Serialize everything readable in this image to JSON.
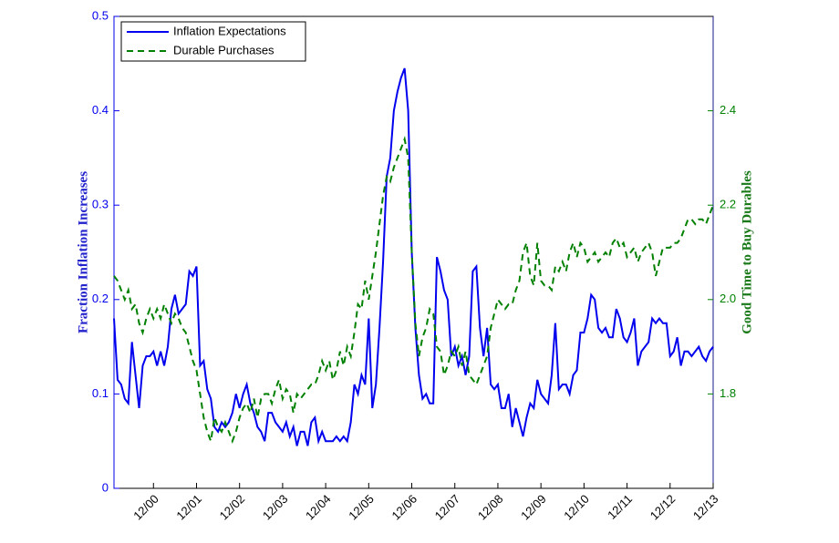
{
  "chart_data": {
    "type": "line",
    "y_label": "Fraction Inflation Increases",
    "y2_label": "Good Time to Buy Durables",
    "xlim": [
      0,
      167
    ],
    "xticks": [
      {
        "value": 11,
        "label": "12/00"
      },
      {
        "value": 23,
        "label": "12/01"
      },
      {
        "value": 35,
        "label": "12/02"
      },
      {
        "value": 47,
        "label": "12/03"
      },
      {
        "value": 59,
        "label": "12/04"
      },
      {
        "value": 71,
        "label": "12/05"
      },
      {
        "value": 83,
        "label": "12/06"
      },
      {
        "value": 95,
        "label": "12/07"
      },
      {
        "value": 107,
        "label": "12/08"
      },
      {
        "value": 119,
        "label": "12/09"
      },
      {
        "value": 131,
        "label": "12/10"
      },
      {
        "value": 143,
        "label": "12/11"
      },
      {
        "value": 155,
        "label": "12/12"
      },
      {
        "value": 167,
        "label": "12/13"
      }
    ],
    "ylim": [
      0,
      0.5
    ],
    "yticks": [
      0,
      0.1,
      0.2,
      0.3,
      0.4,
      0.5
    ],
    "y2lim": [
      1.6,
      2.6
    ],
    "y2ticks": [
      1.8,
      {
        "value": 2,
        "label": "2.0"
      },
      2.2,
      2.4
    ],
    "legend": "upper left",
    "series": [
      {
        "name": "Inflation Expectations",
        "color": "#0000ee",
        "dash": false,
        "values": [
          0.18,
          0.115,
          0.11,
          0.095,
          0.09,
          0.155,
          0.12,
          0.085,
          0.13,
          0.14,
          0.14,
          0.145,
          0.13,
          0.145,
          0.13,
          0.15,
          0.19,
          0.205,
          0.185,
          0.19,
          0.195,
          0.23,
          0.225,
          0.235,
          0.13,
          0.135,
          0.105,
          0.095,
          0.065,
          0.06,
          0.07,
          0.065,
          0.07,
          0.08,
          0.1,
          0.085,
          0.1,
          0.11,
          0.09,
          0.08,
          0.065,
          0.06,
          0.05,
          0.08,
          0.08,
          0.07,
          0.065,
          0.06,
          0.07,
          0.055,
          0.065,
          0.045,
          0.06,
          0.06,
          0.045,
          0.07,
          0.075,
          0.05,
          0.06,
          0.05,
          0.05,
          0.05,
          0.055,
          0.05,
          0.055,
          0.05,
          0.07,
          0.11,
          0.1,
          0.12,
          0.11,
          0.18,
          0.085,
          0.11,
          0.17,
          0.24,
          0.33,
          0.35,
          0.4,
          0.42,
          0.435,
          0.445,
          0.4,
          0.25,
          0.17,
          0.12,
          0.095,
          0.1,
          0.09,
          0.09,
          0.245,
          0.23,
          0.21,
          0.2,
          0.14,
          0.15,
          0.13,
          0.14,
          0.12,
          0.14,
          0.23,
          0.235,
          0.17,
          0.14,
          0.17,
          0.11,
          0.105,
          0.11,
          0.085,
          0.085,
          0.1,
          0.065,
          0.085,
          0.07,
          0.055,
          0.075,
          0.09,
          0.085,
          0.115,
          0.1,
          0.095,
          0.09,
          0.12,
          0.175,
          0.105,
          0.11,
          0.11,
          0.1,
          0.12,
          0.125,
          0.165,
          0.165,
          0.18,
          0.205,
          0.2,
          0.17,
          0.165,
          0.17,
          0.16,
          0.16,
          0.19,
          0.18,
          0.16,
          0.155,
          0.165,
          0.18,
          0.13,
          0.145,
          0.15,
          0.155,
          0.18,
          0.175,
          0.18,
          0.175,
          0.175,
          0.14,
          0.145,
          0.16,
          0.13,
          0.145,
          0.145,
          0.14,
          0.145,
          0.15,
          0.14,
          0.135,
          0.145,
          0.15
        ]
      },
      {
        "name": "Durable Purchases",
        "color": "#008000",
        "dash": true,
        "axis": "y2",
        "values": [
          2.05,
          2.04,
          2.02,
          2.0,
          2.02,
          1.98,
          1.99,
          1.95,
          1.93,
          1.96,
          1.98,
          1.96,
          1.98,
          1.96,
          1.99,
          1.97,
          1.95,
          1.97,
          1.96,
          1.94,
          1.93,
          1.9,
          1.87,
          1.85,
          1.8,
          1.75,
          1.72,
          1.7,
          1.75,
          1.73,
          1.72,
          1.74,
          1.72,
          1.7,
          1.72,
          1.75,
          1.77,
          1.78,
          1.76,
          1.79,
          1.75,
          1.79,
          1.8,
          1.8,
          1.78,
          1.81,
          1.83,
          1.79,
          1.81,
          1.8,
          1.76,
          1.8,
          1.79,
          1.8,
          1.81,
          1.82,
          1.82,
          1.84,
          1.87,
          1.85,
          1.87,
          1.83,
          1.85,
          1.89,
          1.86,
          1.9,
          1.88,
          1.93,
          1.99,
          1.98,
          2.04,
          2.0,
          2.05,
          2.1,
          2.16,
          2.22,
          2.26,
          2.25,
          2.28,
          2.3,
          2.32,
          2.34,
          2.3,
          2.1,
          1.95,
          1.88,
          1.92,
          1.94,
          1.98,
          1.97,
          1.9,
          1.89,
          1.84,
          1.86,
          1.89,
          1.88,
          1.9,
          1.86,
          1.89,
          1.84,
          1.83,
          1.82,
          1.84,
          1.86,
          1.88,
          1.94,
          1.97,
          2.0,
          1.99,
          1.98,
          1.99,
          1.99,
          2.02,
          2.04,
          2.1,
          2.12,
          2.05,
          2.03,
          2.12,
          2.04,
          2.03,
          2.03,
          2.02,
          2.07,
          2.06,
          2.08,
          2.06,
          2.1,
          2.12,
          2.09,
          2.12,
          2.11,
          2.08,
          2.09,
          2.1,
          2.08,
          2.09,
          2.1,
          2.09,
          2.12,
          2.13,
          2.11,
          2.12,
          2.09,
          2.1,
          2.11,
          2.08,
          2.1,
          2.11,
          2.12,
          2.1,
          2.05,
          2.08,
          2.11,
          2.11,
          2.11,
          2.12,
          2.12,
          2.13,
          2.15,
          2.17,
          2.17,
          2.16,
          2.17,
          2.17,
          2.16,
          2.18,
          2.2
        ]
      }
    ]
  }
}
